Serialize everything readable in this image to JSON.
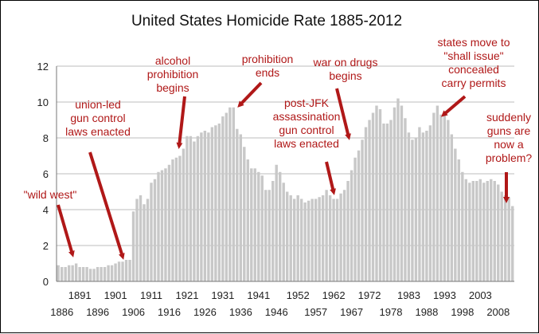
{
  "chart_data": {
    "type": "bar",
    "title": "United States Homicide Rate 1885-2012",
    "xlabel": "",
    "ylabel": "",
    "ylim": [
      0,
      12
    ],
    "yticks": [
      0,
      2,
      4,
      6,
      8,
      10,
      12
    ],
    "grid": true,
    "legend": "none",
    "xticks_top": [
      "1891",
      "1901",
      "1911",
      "1921",
      "1931",
      "1941",
      "1952",
      "1962",
      "1972",
      "1983",
      "1993",
      "2003"
    ],
    "xticks_bottom": [
      "1886",
      "1896",
      "1906",
      "1916",
      "1926",
      "1936",
      "1946",
      "1957",
      "1967",
      "1978",
      "1988",
      "1998",
      "2008"
    ],
    "bar_color": "#c8c8c8",
    "annotation_color": "#b01818",
    "x": [
      1885,
      1886,
      1887,
      1888,
      1889,
      1890,
      1891,
      1892,
      1893,
      1894,
      1895,
      1896,
      1897,
      1898,
      1899,
      1900,
      1901,
      1902,
      1903,
      1904,
      1905,
      1906,
      1907,
      1908,
      1909,
      1910,
      1911,
      1912,
      1913,
      1914,
      1915,
      1916,
      1917,
      1918,
      1919,
      1920,
      1921,
      1922,
      1923,
      1924,
      1925,
      1926,
      1927,
      1928,
      1929,
      1930,
      1931,
      1932,
      1933,
      1934,
      1935,
      1936,
      1937,
      1938,
      1939,
      1940,
      1941,
      1942,
      1943,
      1944,
      1945,
      1946,
      1947,
      1948,
      1949,
      1950,
      1951,
      1952,
      1953,
      1954,
      1955,
      1956,
      1957,
      1958,
      1959,
      1960,
      1961,
      1962,
      1963,
      1964,
      1965,
      1966,
      1967,
      1968,
      1969,
      1970,
      1971,
      1972,
      1973,
      1974,
      1975,
      1976,
      1977,
      1978,
      1979,
      1980,
      1981,
      1982,
      1983,
      1984,
      1985,
      1986,
      1987,
      1988,
      1989,
      1990,
      1991,
      1992,
      1993,
      1994,
      1995,
      1996,
      1997,
      1998,
      1999,
      2000,
      2001,
      2002,
      2003,
      2004,
      2005,
      2006,
      2007,
      2008,
      2009,
      2010,
      2011,
      2012
    ],
    "values": [
      0.9,
      0.8,
      0.8,
      0.9,
      0.9,
      1.0,
      0.8,
      0.8,
      0.8,
      0.7,
      0.7,
      0.8,
      0.8,
      0.8,
      0.9,
      0.9,
      1.0,
      1.1,
      1.1,
      1.2,
      1.2,
      3.9,
      4.6,
      4.8,
      4.3,
      4.6,
      5.5,
      5.7,
      6.1,
      6.2,
      6.3,
      6.5,
      6.8,
      6.9,
      7.0,
      7.4,
      8.1,
      8.1,
      7.8,
      8.1,
      8.3,
      8.4,
      8.3,
      8.6,
      8.7,
      8.8,
      9.2,
      9.4,
      9.7,
      9.7,
      8.5,
      8.2,
      7.5,
      6.8,
      6.3,
      6.3,
      6.1,
      5.9,
      5.1,
      5.1,
      5.6,
      6.5,
      6.1,
      5.5,
      5.0,
      4.8,
      4.6,
      4.8,
      4.6,
      4.4,
      4.5,
      4.6,
      4.6,
      4.7,
      4.8,
      5.1,
      4.8,
      4.6,
      4.6,
      4.9,
      5.1,
      5.6,
      6.2,
      6.9,
      7.3,
      7.9,
      8.6,
      9.0,
      9.4,
      9.8,
      9.6,
      8.8,
      8.8,
      9.0,
      9.7,
      10.2,
      9.8,
      9.1,
      8.3,
      7.9,
      8.0,
      8.6,
      8.3,
      8.4,
      8.7,
      9.4,
      9.8,
      9.3,
      9.5,
      9.0,
      8.2,
      7.4,
      6.8,
      6.1,
      5.7,
      5.5,
      5.6,
      5.6,
      5.7,
      5.5,
      5.6,
      5.7,
      5.6,
      5.4,
      5.0,
      4.8,
      4.7,
      4.2
    ],
    "annotations": [
      {
        "lines": [
          "\"wild west\""
        ],
        "year": 1889
      },
      {
        "lines": [
          "union-led",
          "gun control",
          "laws enacted"
        ],
        "year": 1904
      },
      {
        "lines": [
          "alcohol",
          "prohibition",
          "begins"
        ],
        "year": 1920
      },
      {
        "lines": [
          "prohibition",
          "ends"
        ],
        "year": 1934
      },
      {
        "lines": [
          "war on drugs",
          "begins"
        ],
        "year": 1968
      },
      {
        "lines": [
          "post-JFK",
          "assassination",
          "gun control",
          "laws enacted"
        ],
        "year": 1964
      },
      {
        "lines": [
          "states move to",
          "\"shall issue\"",
          "concealed",
          "carry permits"
        ],
        "year": 1994
      },
      {
        "lines": [
          "suddenly",
          "guns are",
          "now a",
          "problem?"
        ],
        "year": 2012
      }
    ]
  }
}
